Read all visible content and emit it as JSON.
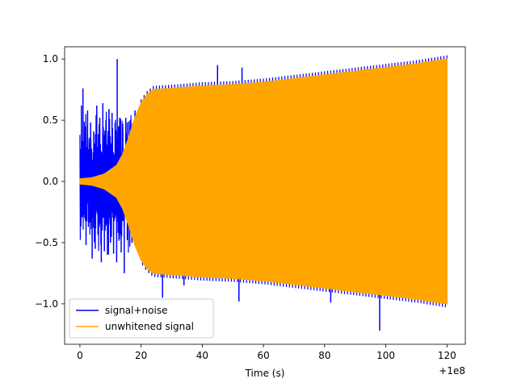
{
  "chart_data": {
    "type": "line",
    "title": "",
    "xlabel": "Time (s)",
    "ylabel": "",
    "x_offset_label": "+1e8",
    "xlim": [
      -5,
      126
    ],
    "ylim": [
      -1.33,
      1.1
    ],
    "x_ticks": [
      0,
      20,
      40,
      60,
      80,
      100,
      120
    ],
    "x_tick_labels": [
      "0",
      "20",
      "40",
      "60",
      "80",
      "100",
      "120"
    ],
    "y_ticks": [
      1.0,
      0.5,
      0.0,
      -0.5,
      -1.0
    ],
    "y_tick_labels": [
      "1.0",
      "0.5",
      "0.0",
      "−0.5",
      "−1.0"
    ],
    "grid": false,
    "legend_position": "lower-left",
    "series": [
      {
        "name": "signal+noise",
        "color": "#0000ff",
        "description_points": [
          [
            0,
            0.0
          ],
          [
            0.5,
            0.62
          ],
          [
            0.8,
            -0.28
          ],
          [
            1.0,
            0.76
          ],
          [
            1.3,
            -0.15
          ],
          [
            1.6,
            0.45
          ],
          [
            2.0,
            -0.52
          ],
          [
            2.5,
            0.58
          ],
          [
            3.0,
            -0.32
          ],
          [
            3.5,
            0.48
          ],
          [
            4.0,
            -0.63
          ],
          [
            4.5,
            0.41
          ],
          [
            5.0,
            -0.55
          ],
          [
            5.5,
            0.62
          ],
          [
            6.0,
            -0.44
          ],
          [
            6.5,
            0.52
          ],
          [
            7.0,
            -0.66
          ],
          [
            7.5,
            0.64
          ],
          [
            8.0,
            -0.57
          ],
          [
            8.5,
            0.5
          ],
          [
            9.0,
            -0.6
          ],
          [
            9.5,
            0.59
          ],
          [
            10.0,
            -0.5
          ],
          [
            10.5,
            0.56
          ],
          [
            11.0,
            -0.59
          ],
          [
            11.5,
            0.48
          ],
          [
            12.0,
            -0.66
          ],
          [
            12.2,
            1.0
          ],
          [
            12.5,
            -0.42
          ],
          [
            13.0,
            0.52
          ],
          [
            13.5,
            -0.58
          ],
          [
            14.0,
            0.47
          ],
          [
            14.5,
            -0.75
          ],
          [
            15.0,
            0.52
          ],
          [
            15.5,
            -0.48
          ],
          [
            16.0,
            0.49
          ],
          [
            17.0,
            -0.5
          ],
          [
            18.0,
            0.58
          ],
          [
            27.0,
            -0.95
          ],
          [
            34.0,
            -0.85
          ],
          [
            45.0,
            0.95
          ],
          [
            53.0,
            0.93
          ],
          [
            52.0,
            -0.98
          ],
          [
            82.0,
            -0.99
          ],
          [
            98.0,
            -1.22
          ],
          [
            108.0,
            0.9
          ]
        ]
      },
      {
        "name": "unwhitened signal",
        "color": "#ffa500",
        "envelope": {
          "x": [
            0,
            4,
            8,
            12,
            14,
            16,
            18,
            20,
            22,
            24,
            30,
            40,
            50,
            60,
            70,
            80,
            90,
            100,
            110,
            120
          ],
          "amplitude": [
            0.02,
            0.03,
            0.06,
            0.13,
            0.22,
            0.36,
            0.52,
            0.64,
            0.71,
            0.75,
            0.76,
            0.78,
            0.79,
            0.81,
            0.84,
            0.87,
            0.9,
            0.93,
            0.96,
            1.0
          ]
        }
      }
    ]
  }
}
